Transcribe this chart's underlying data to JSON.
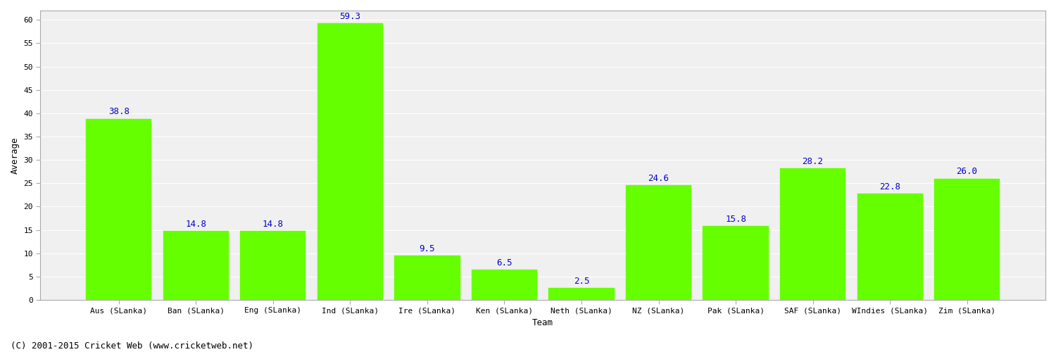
{
  "categories": [
    "Aus (SLanka)",
    "Ban (SLanka)",
    "Eng (SLanka)",
    "Ind (SLanka)",
    "Ire (SLanka)",
    "Ken (SLanka)",
    "Neth (SLanka)",
    "NZ (SLanka)",
    "Pak (SLanka)",
    "SAF (SLanka)",
    "WIndies (SLanka)",
    "Zim (SLanka)"
  ],
  "values": [
    38.8,
    14.8,
    14.8,
    59.3,
    9.5,
    6.5,
    2.5,
    24.6,
    15.8,
    28.2,
    22.8,
    26.0
  ],
  "bar_color": "#66ff00",
  "bar_edge_color": "#66ff00",
  "xlabel": "Team",
  "ylabel": "Average",
  "ylim": [
    0,
    62
  ],
  "yticks": [
    0,
    5,
    10,
    15,
    20,
    25,
    30,
    35,
    40,
    45,
    50,
    55,
    60
  ],
  "label_color": "#0000cc",
  "label_fontsize": 9,
  "axis_label_fontsize": 9,
  "tick_fontsize": 8,
  "grid_color": "#e0e0e0",
  "background_color": "#ffffff",
  "plot_bg_color": "#f0f0f0",
  "footer_text": "(C) 2001-2015 Cricket Web (www.cricketweb.net)",
  "footer_fontsize": 9,
  "spine_color": "#aaaaaa"
}
